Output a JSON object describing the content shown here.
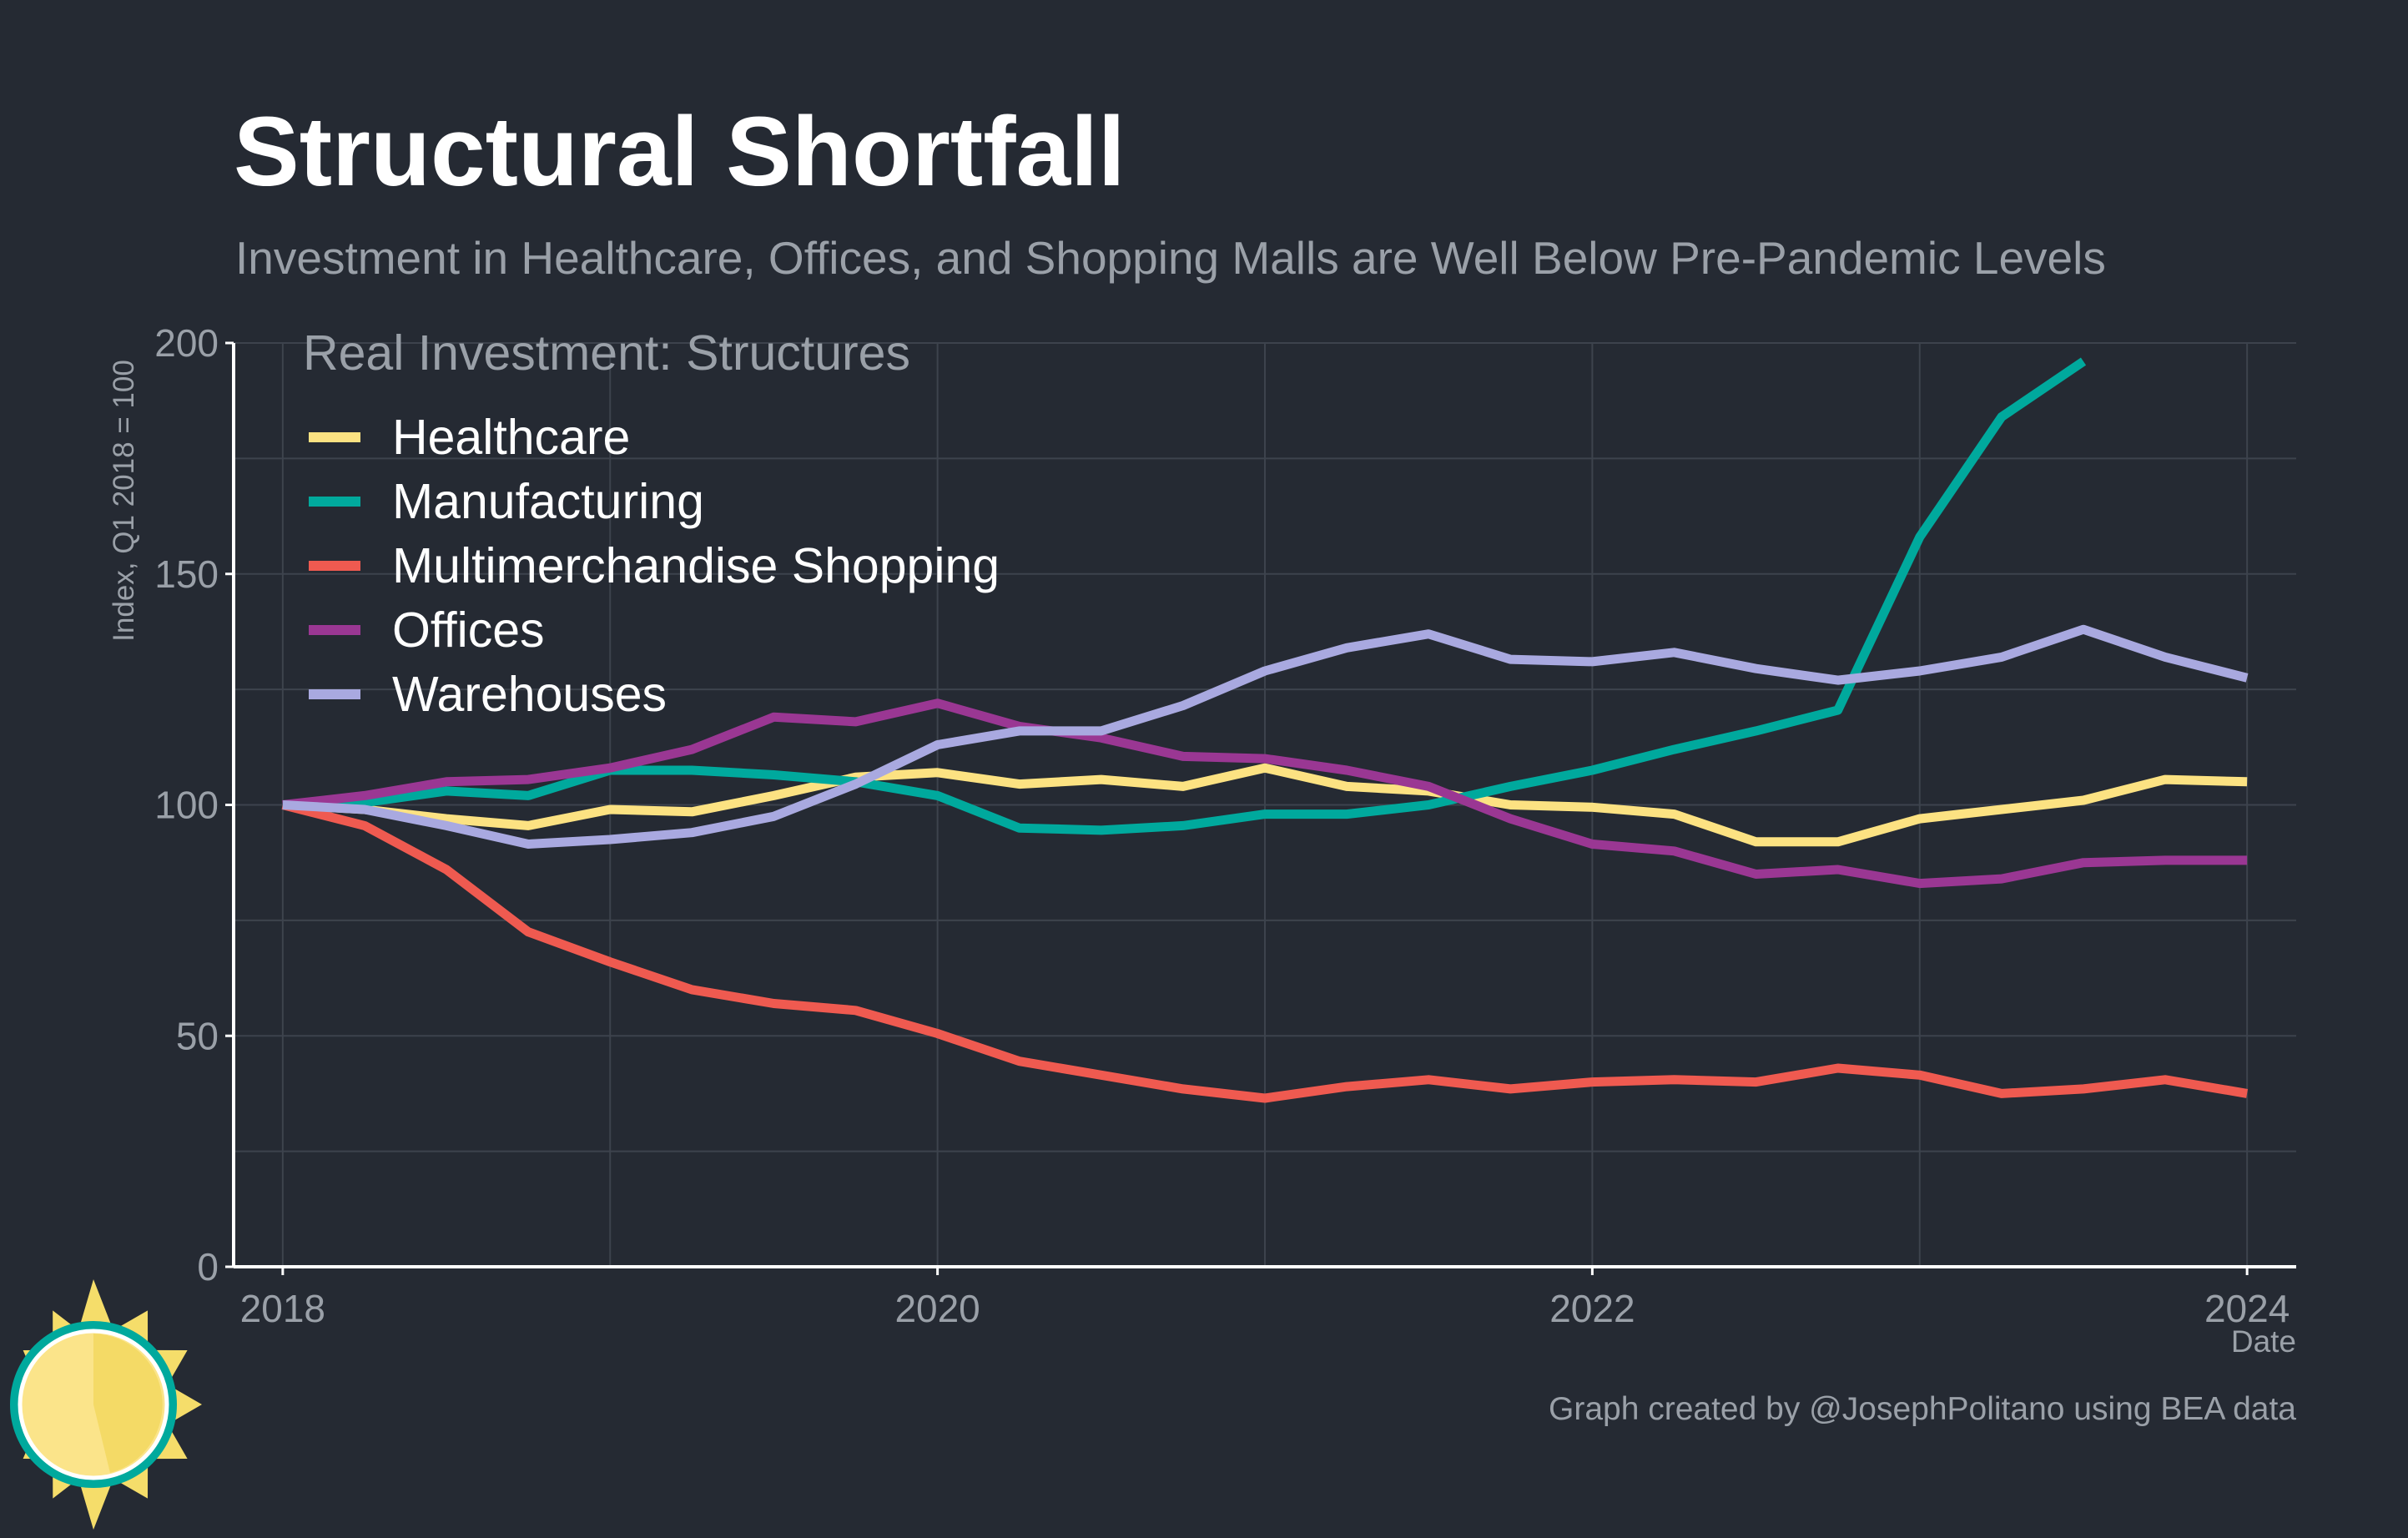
{
  "colors": {
    "background": "#252a33",
    "grid": "#3d434d",
    "axis": "#ffffff",
    "muted_text": "#9aa0a8",
    "healthcare": "#fce282",
    "manufacturing": "#00a99d",
    "multimerchandise_shopping": "#ef5a50",
    "offices": "#9a3793",
    "warehouses": "#a9a9e0",
    "logo_sun": "#f5dd6a",
    "logo_ring": "#00a99d"
  },
  "logo": {
    "icon": "sun-icon"
  },
  "chart_data": {
    "type": "line",
    "title": "Structural Shortfall",
    "subtitle": "Investment in Healthcare, Offices, and Shopping Malls are Well Below Pre-Pandemic Levels",
    "legend_title": "Real Investment: Structures",
    "legend_position": "top-left",
    "xlabel": "Date",
    "ylabel": "Index, Q1 2018 = 100",
    "xlim": [
      2017.85,
      2024.15
    ],
    "ylim": [
      0,
      200
    ],
    "x_ticks": [
      2018,
      2020,
      2022,
      2024
    ],
    "x_tick_labels": [
      "2018",
      "2020",
      "2022",
      "2024"
    ],
    "y_ticks": [
      0,
      50,
      100,
      150,
      200
    ],
    "y_tick_labels": [
      "0",
      "50",
      "100",
      "150",
      "200"
    ],
    "grid": true,
    "x": [
      2018.0,
      2018.25,
      2018.5,
      2018.75,
      2019.0,
      2019.25,
      2019.5,
      2019.75,
      2020.0,
      2020.25,
      2020.5,
      2020.75,
      2021.0,
      2021.25,
      2021.5,
      2021.75,
      2022.0,
      2022.25,
      2022.5,
      2022.75,
      2023.0,
      2023.25,
      2023.5,
      2023.75,
      2024.0
    ],
    "series": [
      {
        "name": "Healthcare",
        "color_key": "healthcare",
        "values": [
          100,
          99,
          97,
          95.5,
          99,
          98.5,
          102,
          106,
          107,
          104.5,
          105.5,
          104,
          108,
          104,
          103,
          100,
          99.5,
          98,
          92,
          92,
          97,
          99,
          101,
          105.5,
          105
        ]
      },
      {
        "name": "Manufacturing",
        "color_key": "manufacturing",
        "values": [
          100,
          100.5,
          103,
          102,
          107.5,
          107.5,
          106.5,
          105,
          102,
          95,
          94.5,
          95.5,
          98,
          98,
          100,
          104,
          107.5,
          112,
          116,
          120.5,
          158,
          184,
          196,
          null,
          null
        ]
      },
      {
        "name": "Multimerchandise Shopping",
        "color_key": "multimerchandise_shopping",
        "values": [
          100,
          95.5,
          86,
          72.5,
          66,
          60,
          57,
          55.5,
          50.5,
          44.5,
          41.5,
          38.5,
          36.5,
          39,
          40.5,
          38.5,
          40,
          40.5,
          40,
          43,
          41.5,
          37.5,
          38.5,
          40.5,
          37.5
        ]
      },
      {
        "name": "Offices",
        "color_key": "offices",
        "values": [
          100,
          102,
          105,
          105.5,
          108,
          112,
          119,
          118,
          122,
          117,
          114.5,
          110.5,
          110,
          107.5,
          104,
          97,
          91.5,
          90,
          85,
          86,
          83,
          84,
          87.5,
          88,
          88
        ]
      },
      {
        "name": "Warehouses",
        "color_key": "warehouses",
        "values": [
          100,
          99,
          95.5,
          91.5,
          92.5,
          94,
          97.5,
          104.5,
          113,
          116,
          116,
          121.5,
          129,
          134,
          137,
          131.5,
          131,
          133,
          129.5,
          127,
          129,
          132,
          138,
          132,
          127.5
        ]
      }
    ],
    "caption": "Graph created by @JosephPolitano using BEA data"
  }
}
